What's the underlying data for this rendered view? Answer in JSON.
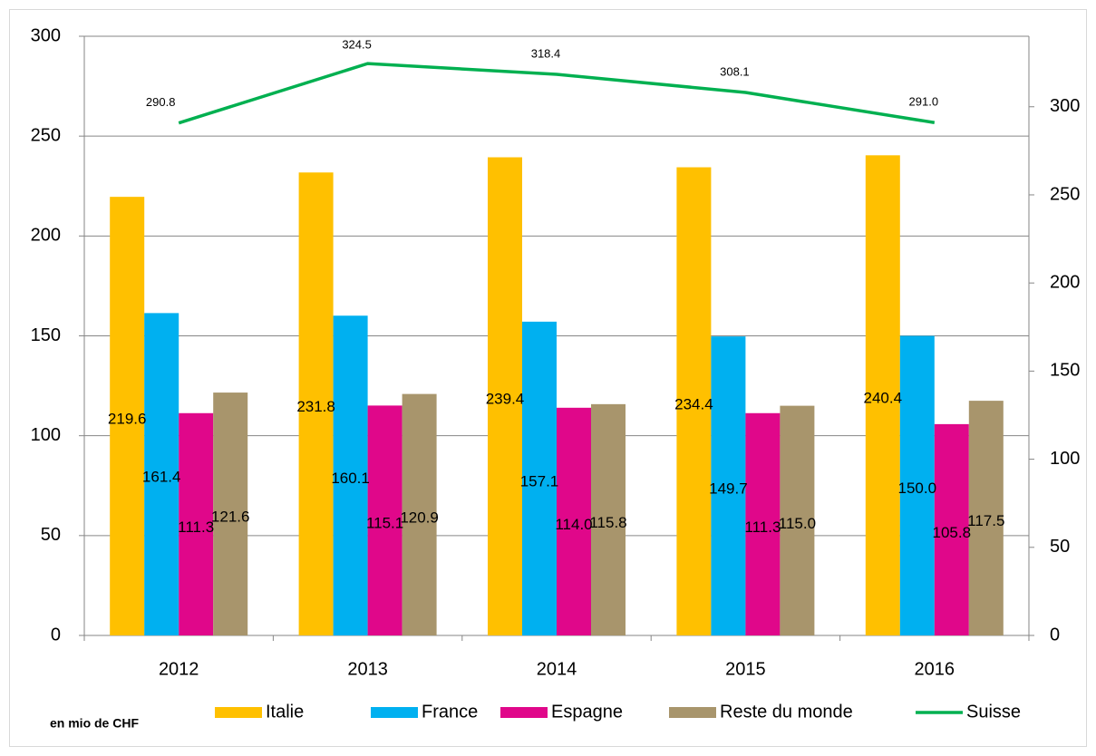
{
  "chart_data": {
    "type": "bar_line",
    "unit_label": "en mio de CHF",
    "categories": [
      "2012",
      "2013",
      "2014",
      "2015",
      "2016"
    ],
    "series": [
      {
        "name": "Italie",
        "type": "bar",
        "color": "#FFC000",
        "values": [
          219.6,
          231.8,
          239.4,
          234.4,
          240.4
        ],
        "value_labels": [
          "219.6",
          "231.8",
          "239.4",
          "234.4",
          "240.4"
        ]
      },
      {
        "name": "France",
        "type": "bar",
        "color": "#00B0F0",
        "values": [
          161.4,
          160.1,
          157.1,
          149.7,
          150.0
        ],
        "value_labels": [
          "161.4",
          "160.1",
          "157.1",
          "149.7",
          "150.0"
        ]
      },
      {
        "name": "Espagne",
        "type": "bar",
        "color": "#E0078A",
        "values": [
          111.3,
          115.1,
          114.0,
          111.3,
          105.8
        ],
        "value_labels": [
          "111.3",
          "115.1",
          "114.0",
          "111.3",
          "105.8"
        ]
      },
      {
        "name": "Reste du monde",
        "type": "bar",
        "color": "#A8956C",
        "values": [
          121.6,
          120.9,
          115.8,
          115.0,
          117.5
        ],
        "value_labels": [
          "121.6",
          "120.9",
          "115.8",
          "115.0",
          "117.5"
        ]
      },
      {
        "name": "Suisse",
        "type": "line",
        "axis": "y2",
        "color": "#00B050",
        "values": [
          290.8,
          324.5,
          318.4,
          308.1,
          291.0
        ],
        "value_labels": [
          "290.8",
          "324.5",
          "318.4",
          "308.1",
          "291.0"
        ]
      }
    ],
    "ylim": [
      0,
      300
    ],
    "yticks": [
      0,
      50,
      100,
      150,
      200,
      250,
      300
    ],
    "y2lim": [
      0,
      340
    ],
    "y2ticks": [
      0,
      50,
      100,
      150,
      200,
      250,
      300
    ],
    "grid": true
  }
}
